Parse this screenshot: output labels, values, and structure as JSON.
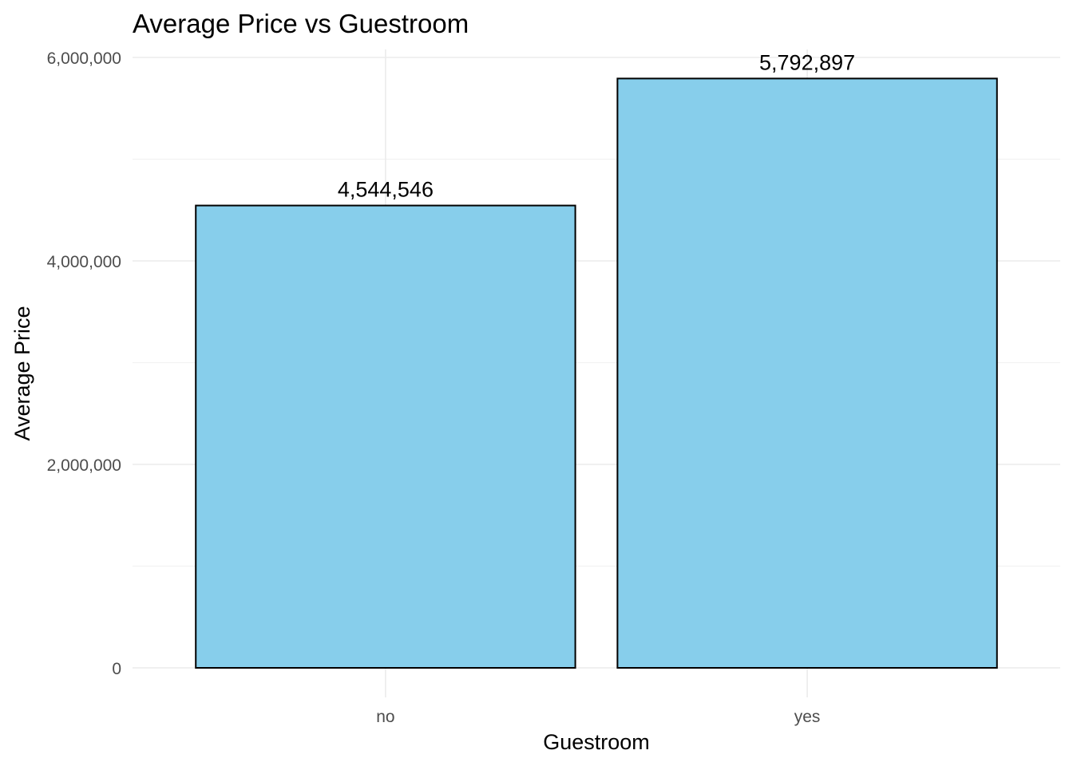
{
  "chart_data": {
    "type": "bar",
    "title": "Average Price vs Guestroom",
    "xlabel": "Guestroom",
    "ylabel": "Average Price",
    "categories": [
      "no",
      "yes"
    ],
    "values": [
      4544546,
      5792897
    ],
    "value_labels": [
      "4,544,546",
      "5,792,897"
    ],
    "ylim": [
      0,
      6000000
    ],
    "y_ticks": [
      0,
      2000000,
      4000000,
      6000000
    ],
    "y_tick_labels": [
      "0",
      "2,000,000",
      "4,000,000",
      "6,000,000"
    ],
    "y_minor_ticks": [
      1000000,
      3000000,
      5000000
    ],
    "bar_color": "#87CEEB",
    "bar_outline_color": "#000000",
    "grid": true,
    "legend": "none"
  }
}
